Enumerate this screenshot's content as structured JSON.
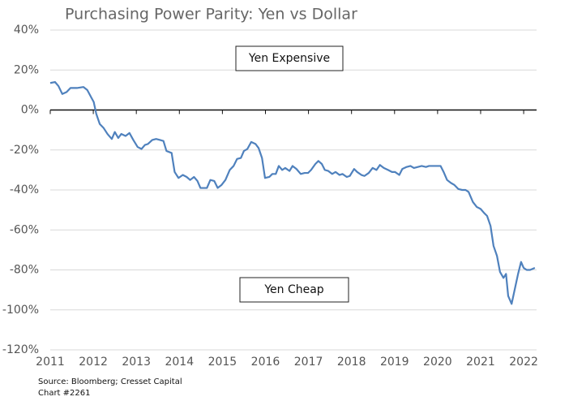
{
  "chart_data": {
    "type": "line",
    "title": "Purchasing Power Parity: Yen vs Dollar",
    "source": "Source: Bloomberg; Cresset Capital",
    "chart_id": "Chart  #2261",
    "annotations": [
      "Yen Expensive",
      "Yen Cheap"
    ],
    "color": "#4f81bd",
    "grid": true,
    "xlim": [
      2011,
      2022.3
    ],
    "xticks": [
      2011,
      2012,
      2013,
      2014,
      2015,
      2016,
      2017,
      2018,
      2019,
      2020,
      2021,
      2022
    ],
    "ylim": [
      -120,
      40
    ],
    "yticks": [
      {
        "value": 40,
        "label": "40%"
      },
      {
        "value": 20,
        "label": "20%"
      },
      {
        "value": 0,
        "label": "0%"
      },
      {
        "value": -20,
        "label": "-20%"
      },
      {
        "value": -40,
        "label": "-40%"
      },
      {
        "value": -60,
        "label": "-60%"
      },
      {
        "value": -80,
        "label": "-80%"
      },
      {
        "value": -100,
        "label": "-100%"
      },
      {
        "value": -120,
        "label": "-120%"
      }
    ],
    "x": [
      2011.0,
      2011.11,
      2011.19,
      2011.28,
      2011.38,
      2011.47,
      2011.62,
      2011.77,
      2011.86,
      2011.96,
      2012.01,
      2012.07,
      2012.15,
      2012.24,
      2012.33,
      2012.43,
      2012.5,
      2012.58,
      2012.65,
      2012.75,
      2012.84,
      2012.93,
      2013.03,
      2013.12,
      2013.2,
      2013.27,
      2013.37,
      2013.46,
      2013.55,
      2013.63,
      2013.7,
      2013.82,
      2013.89,
      2013.98,
      2014.08,
      2014.17,
      2014.25,
      2014.34,
      2014.42,
      2014.49,
      2014.64,
      2014.72,
      2014.81,
      2014.89,
      2014.98,
      2015.07,
      2015.17,
      2015.26,
      2015.34,
      2015.43,
      2015.5,
      2015.58,
      2015.67,
      2015.77,
      2015.84,
      2015.92,
      2015.99,
      2016.09,
      2016.16,
      2016.24,
      2016.31,
      2016.39,
      2016.46,
      2016.56,
      2016.63,
      2016.72,
      2016.82,
      2016.91,
      2016.99,
      2017.06,
      2017.16,
      2017.23,
      2017.31,
      2017.38,
      2017.46,
      2017.55,
      2017.63,
      2017.72,
      2017.79,
      2017.89,
      2017.96,
      2018.06,
      2018.13,
      2018.23,
      2018.3,
      2018.4,
      2018.49,
      2018.58,
      2018.66,
      2018.75,
      2018.85,
      2018.94,
      2019.01,
      2019.11,
      2019.18,
      2019.28,
      2019.37,
      2019.45,
      2019.54,
      2019.63,
      2019.73,
      2019.8,
      2019.88,
      2019.97,
      2020.07,
      2020.14,
      2020.22,
      2020.31,
      2020.39,
      2020.48,
      2020.57,
      2020.65,
      2020.72,
      2020.82,
      2020.91,
      2021.0,
      2021.08,
      2021.15,
      2021.23,
      2021.3,
      2021.38,
      2021.45,
      2021.53,
      2021.59,
      2021.64,
      2021.72,
      2021.79,
      2021.87,
      2021.94,
      2022.0,
      2022.07,
      2022.15,
      2022.26
    ],
    "values": [
      13.5,
      14,
      12,
      8,
      9,
      11,
      11,
      11.5,
      10,
      6,
      4,
      -2,
      -7,
      -9,
      -12,
      -14.5,
      -11,
      -14,
      -12,
      -13,
      -11.5,
      -15,
      -18.5,
      -19.5,
      -17.5,
      -17,
      -15,
      -14.5,
      -15,
      -15.5,
      -20.5,
      -21.5,
      -31,
      -34,
      -32.5,
      -33.5,
      -35,
      -33.5,
      -35.5,
      -39,
      -39,
      -35,
      -35.5,
      -39,
      -37.5,
      -35,
      -30,
      -28,
      -24.5,
      -24,
      -20.5,
      -19.5,
      -16,
      -17,
      -19,
      -24,
      -34,
      -33.5,
      -32,
      -32,
      -28,
      -30,
      -29,
      -30.5,
      -28,
      -29.5,
      -32,
      -31.5,
      -31.5,
      -30,
      -27,
      -25.5,
      -27,
      -30,
      -30.5,
      -32,
      -31,
      -32.5,
      -32,
      -33.5,
      -33,
      -29.5,
      -31,
      -32.5,
      -33,
      -31.5,
      -29,
      -30,
      -27.5,
      -29,
      -30,
      -31,
      -31,
      -32.5,
      -29.5,
      -28.5,
      -28,
      -29,
      -28.5,
      -28,
      -28.5,
      -28,
      -28,
      -28,
      -28,
      -31,
      -35,
      -36.5,
      -37.5,
      -39.5,
      -40,
      -40,
      -41,
      -46,
      -48.5,
      -49.5,
      -51.5,
      -53,
      -58,
      -68,
      -73,
      -81,
      -84,
      -82,
      -93,
      -97,
      -90,
      -82,
      -76,
      -79,
      -80,
      -80,
      -79
    ]
  }
}
